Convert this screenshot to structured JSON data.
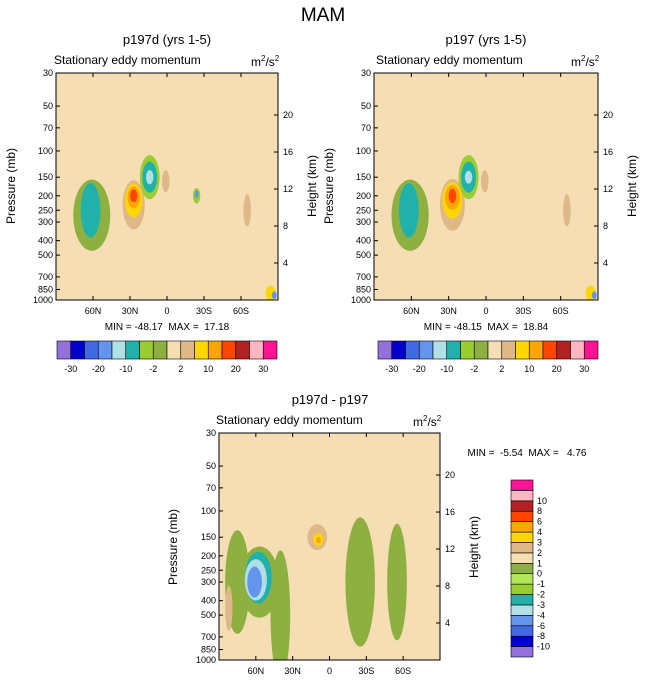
{
  "figure": {
    "title": "MAM"
  },
  "palette": {
    "full": [
      "#9370db",
      "#0000cd",
      "#4169e1",
      "#6495ed",
      "#b0e0e6",
      "#20b2aa",
      "#9acd32",
      "#8db040",
      "#f5deb3",
      "#deb887",
      "#ffd700",
      "#ffa500",
      "#ff4500",
      "#b22222",
      "#ffb6c1",
      "#ff1493"
    ],
    "diff": [
      "#9370db",
      "#0000cd",
      "#4169e1",
      "#6495ed",
      "#b0e0e6",
      "#20b2aa",
      "#9acd32",
      "#b3e65a",
      "#8db040",
      "#f5deb3",
      "#deb887",
      "#ffd700",
      "#ffa500",
      "#ff4500",
      "#b22222",
      "#ffb6c1",
      "#ff1493"
    ]
  },
  "chart_data": [
    {
      "id": "panel1",
      "type": "heatmap",
      "title": "p197d (yrs 1-5)",
      "subtitle": "Stationary eddy momentum",
      "units": "m2/s2",
      "ylabel": "Pressure (mb)",
      "ylabel_right": "Height (km)",
      "x_ticks": [
        {
          "lat": 60,
          "label": "60N"
        },
        {
          "lat": 30,
          "label": "30N"
        },
        {
          "lat": 0,
          "label": "0"
        },
        {
          "lat": -30,
          "label": "30S"
        },
        {
          "lat": -60,
          "label": "60S"
        }
      ],
      "xlim": [
        90,
        -90
      ],
      "ylim_mb": [
        1000,
        30
      ],
      "pressure_levels": [
        {
          "p": 30,
          "label": "30"
        },
        {
          "p": 50,
          "label": "50"
        },
        {
          "p": 70,
          "label": "70"
        },
        {
          "p": 100,
          "label": "100"
        },
        {
          "p": 150,
          "label": "150"
        },
        {
          "p": 200,
          "label": "200"
        },
        {
          "p": 250,
          "label": "250"
        },
        {
          "p": 300,
          "label": "300"
        },
        {
          "p": 400,
          "label": "400"
        },
        {
          "p": 500,
          "label": "500"
        },
        {
          "p": 700,
          "label": "700"
        },
        {
          "p": 850,
          "label": "850"
        },
        {
          "p": 1000,
          "label": "1000"
        }
      ],
      "height_ticks": [
        {
          "km": 4,
          "label": "4"
        },
        {
          "km": 8,
          "label": "8"
        },
        {
          "km": 12,
          "label": "12"
        },
        {
          "km": 16,
          "label": "16"
        },
        {
          "km": 20,
          "label": "20"
        }
      ],
      "stats": "MIN = -48.17  MAX =  17.18",
      "min": -48.17,
      "max": 17.18,
      "background_level": 8,
      "features": [
        {
          "lat": 61,
          "p": 270,
          "dlat": 15,
          "dp": 0.55,
          "level": 7
        },
        {
          "lat": 62,
          "p": 250,
          "dlat": 8,
          "dp": 0.42,
          "level": 5
        },
        {
          "lat": 27,
          "p": 230,
          "dlat": 9,
          "dp": 0.38,
          "level": 9
        },
        {
          "lat": 27,
          "p": 215,
          "dlat": 7,
          "dp": 0.26,
          "level": 10
        },
        {
          "lat": 27,
          "p": 205,
          "dlat": 5,
          "dp": 0.17,
          "level": 11
        },
        {
          "lat": 27,
          "p": 200,
          "dlat": 3,
          "dp": 0.1,
          "level": 12
        },
        {
          "lat": 14,
          "p": 150,
          "dlat": 8,
          "dp": 0.34,
          "level": 6
        },
        {
          "lat": 14,
          "p": 150,
          "dlat": 6,
          "dp": 0.24,
          "level": 5
        },
        {
          "lat": 14,
          "p": 150,
          "dlat": 3,
          "dp": 0.11,
          "level": 4
        },
        {
          "lat": 1,
          "p": 160,
          "dlat": 3,
          "dp": 0.17,
          "level": 9
        },
        {
          "lat": -24,
          "p": 200,
          "dlat": 3,
          "dp": 0.12,
          "level": 6
        },
        {
          "lat": -24,
          "p": 195,
          "dlat": 1.5,
          "dp": 0.06,
          "level": 3
        },
        {
          "lat": -65,
          "p": 250,
          "dlat": 3,
          "dp": 0.25,
          "level": 9
        },
        {
          "lat": -84,
          "p": 900,
          "dlat": 4,
          "dp": 0.12,
          "level": 10
        },
        {
          "lat": -87,
          "p": 930,
          "dlat": 2,
          "dp": 0.06,
          "level": 3
        }
      ],
      "colorbar": {
        "orientation": "horizontal",
        "labels": [
          {
            "boundary": 1,
            "label": "-30"
          },
          {
            "boundary": 3,
            "label": "-20"
          },
          {
            "boundary": 5,
            "label": "-10"
          },
          {
            "boundary": 7,
            "label": "-2"
          },
          {
            "boundary": 9,
            "label": "2"
          },
          {
            "boundary": 11,
            "label": "10"
          },
          {
            "boundary": 13,
            "label": "20"
          },
          {
            "boundary": 15,
            "label": "30"
          }
        ]
      }
    },
    {
      "id": "panel2",
      "type": "heatmap",
      "title": "p197 (yrs 1-5)",
      "subtitle": "Stationary eddy momentum",
      "units": "m2/s2",
      "ylabel": "Pressure (mb)",
      "ylabel_right": "Height (km)",
      "x_ticks": [
        {
          "lat": 60,
          "label": "60N"
        },
        {
          "lat": 30,
          "label": "30N"
        },
        {
          "lat": 0,
          "label": "0"
        },
        {
          "lat": -30,
          "label": "30S"
        },
        {
          "lat": -60,
          "label": "60S"
        }
      ],
      "xlim": [
        90,
        -90
      ],
      "ylim_mb": [
        1000,
        30
      ],
      "pressure_levels": [
        {
          "p": 30,
          "label": "30"
        },
        {
          "p": 50,
          "label": "50"
        },
        {
          "p": 70,
          "label": "70"
        },
        {
          "p": 100,
          "label": "100"
        },
        {
          "p": 150,
          "label": "150"
        },
        {
          "p": 200,
          "label": "200"
        },
        {
          "p": 250,
          "label": "250"
        },
        {
          "p": 300,
          "label": "300"
        },
        {
          "p": 400,
          "label": "400"
        },
        {
          "p": 500,
          "label": "500"
        },
        {
          "p": 700,
          "label": "700"
        },
        {
          "p": 850,
          "label": "850"
        },
        {
          "p": 1000,
          "label": "1000"
        }
      ],
      "height_ticks": [
        {
          "km": 4,
          "label": "4"
        },
        {
          "km": 8,
          "label": "8"
        },
        {
          "km": 12,
          "label": "12"
        },
        {
          "km": 16,
          "label": "16"
        },
        {
          "km": 20,
          "label": "20"
        }
      ],
      "stats": "MIN = -48.15  MAX =  18.84",
      "min": -48.15,
      "max": 18.84,
      "background_level": 8,
      "features": [
        {
          "lat": 61,
          "p": 270,
          "dlat": 15,
          "dp": 0.55,
          "level": 7
        },
        {
          "lat": 62,
          "p": 250,
          "dlat": 8,
          "dp": 0.42,
          "level": 5
        },
        {
          "lat": 27,
          "p": 230,
          "dlat": 10,
          "dp": 0.4,
          "level": 9
        },
        {
          "lat": 27,
          "p": 215,
          "dlat": 8,
          "dp": 0.28,
          "level": 10
        },
        {
          "lat": 27,
          "p": 205,
          "dlat": 6,
          "dp": 0.19,
          "level": 11
        },
        {
          "lat": 27,
          "p": 200,
          "dlat": 3,
          "dp": 0.11,
          "level": 12
        },
        {
          "lat": 14,
          "p": 150,
          "dlat": 8,
          "dp": 0.34,
          "level": 6
        },
        {
          "lat": 14,
          "p": 150,
          "dlat": 6,
          "dp": 0.24,
          "level": 5
        },
        {
          "lat": 14,
          "p": 150,
          "dlat": 3,
          "dp": 0.1,
          "level": 4
        },
        {
          "lat": 1,
          "p": 160,
          "dlat": 3,
          "dp": 0.17,
          "level": 9
        },
        {
          "lat": -65,
          "p": 250,
          "dlat": 3,
          "dp": 0.25,
          "level": 9
        },
        {
          "lat": -84,
          "p": 900,
          "dlat": 4,
          "dp": 0.12,
          "level": 10
        },
        {
          "lat": -87,
          "p": 930,
          "dlat": 2,
          "dp": 0.06,
          "level": 3
        }
      ],
      "colorbar": {
        "orientation": "horizontal",
        "labels": [
          {
            "boundary": 1,
            "label": "-30"
          },
          {
            "boundary": 3,
            "label": "-20"
          },
          {
            "boundary": 5,
            "label": "-10"
          },
          {
            "boundary": 7,
            "label": "-2"
          },
          {
            "boundary": 9,
            "label": "2"
          },
          {
            "boundary": 11,
            "label": "10"
          },
          {
            "boundary": 13,
            "label": "20"
          },
          {
            "boundary": 15,
            "label": "30"
          }
        ]
      }
    },
    {
      "id": "panel3",
      "type": "heatmap",
      "title": "p197d - p197",
      "subtitle": "Stationary eddy momentum",
      "units": "m2/s2",
      "ylabel": "Pressure (mb)",
      "ylabel_right": "Height (km)",
      "x_ticks": [
        {
          "lat": 60,
          "label": "60N"
        },
        {
          "lat": 30,
          "label": "30N"
        },
        {
          "lat": 0,
          "label": "0"
        },
        {
          "lat": -30,
          "label": "30S"
        },
        {
          "lat": -60,
          "label": "60S"
        }
      ],
      "xlim": [
        90,
        -90
      ],
      "ylim_mb": [
        1000,
        30
      ],
      "pressure_levels": [
        {
          "p": 30,
          "label": "30"
        },
        {
          "p": 50,
          "label": "50"
        },
        {
          "p": 70,
          "label": "70"
        },
        {
          "p": 100,
          "label": "100"
        },
        {
          "p": 150,
          "label": "150"
        },
        {
          "p": 200,
          "label": "200"
        },
        {
          "p": 250,
          "label": "250"
        },
        {
          "p": 300,
          "label": "300"
        },
        {
          "p": 400,
          "label": "400"
        },
        {
          "p": 500,
          "label": "500"
        },
        {
          "p": 700,
          "label": "700"
        },
        {
          "p": 850,
          "label": "850"
        },
        {
          "p": 1000,
          "label": "1000"
        }
      ],
      "height_ticks": [
        {
          "km": 4,
          "label": "4"
        },
        {
          "km": 8,
          "label": "8"
        },
        {
          "km": 12,
          "label": "12"
        },
        {
          "km": 16,
          "label": "16"
        },
        {
          "km": 20,
          "label": "20"
        }
      ],
      "stats": "MIN =  -5.54  MAX =   4.76",
      "min": -5.54,
      "max": 4.76,
      "background_level": 9,
      "features": [
        {
          "lat": 75,
          "p": 300,
          "dlat": 10,
          "dp": 0.8,
          "level": 8
        },
        {
          "lat": 57,
          "p": 300,
          "dlat": 16,
          "dp": 0.55,
          "level": 8
        },
        {
          "lat": 58,
          "p": 280,
          "dlat": 11,
          "dp": 0.4,
          "level": 5
        },
        {
          "lat": 60,
          "p": 290,
          "dlat": 9,
          "dp": 0.32,
          "level": 4
        },
        {
          "lat": 61,
          "p": 300,
          "dlat": 6,
          "dp": 0.24,
          "level": 3
        },
        {
          "lat": 10,
          "p": 150,
          "dlat": 8,
          "dp": 0.2,
          "level": 10
        },
        {
          "lat": 9,
          "p": 155,
          "dlat": 4,
          "dp": 0.1,
          "level": 11
        },
        {
          "lat": 9,
          "p": 157,
          "dlat": 2,
          "dp": 0.05,
          "level": 12
        },
        {
          "lat": 82,
          "p": 450,
          "dlat": 3,
          "dp": 0.35,
          "level": 10
        },
        {
          "lat": 40,
          "p": 500,
          "dlat": 8,
          "dp": 1.0,
          "level": 8
        },
        {
          "lat": -25,
          "p": 300,
          "dlat": 12,
          "dp": 1.0,
          "level": 8
        },
        {
          "lat": -55,
          "p": 300,
          "dlat": 8,
          "dp": 0.9,
          "level": 8
        }
      ],
      "colorbar": {
        "orientation": "vertical",
        "labels": [
          {
            "boundary": 1,
            "label": "-10"
          },
          {
            "boundary": 2,
            "label": "-8"
          },
          {
            "boundary": 3,
            "label": "-6"
          },
          {
            "boundary": 4,
            "label": "-4"
          },
          {
            "boundary": 5,
            "label": "-3"
          },
          {
            "boundary": 6,
            "label": "-2"
          },
          {
            "boundary": 7,
            "label": "-1"
          },
          {
            "boundary": 8,
            "label": "0"
          },
          {
            "boundary": 9,
            "label": "1"
          },
          {
            "boundary": 10,
            "label": "2"
          },
          {
            "boundary": 11,
            "label": "3"
          },
          {
            "boundary": 12,
            "label": "4"
          },
          {
            "boundary": 13,
            "label": "6"
          },
          {
            "boundary": 14,
            "label": "8"
          },
          {
            "boundary": 15,
            "label": "10"
          }
        ]
      }
    }
  ]
}
